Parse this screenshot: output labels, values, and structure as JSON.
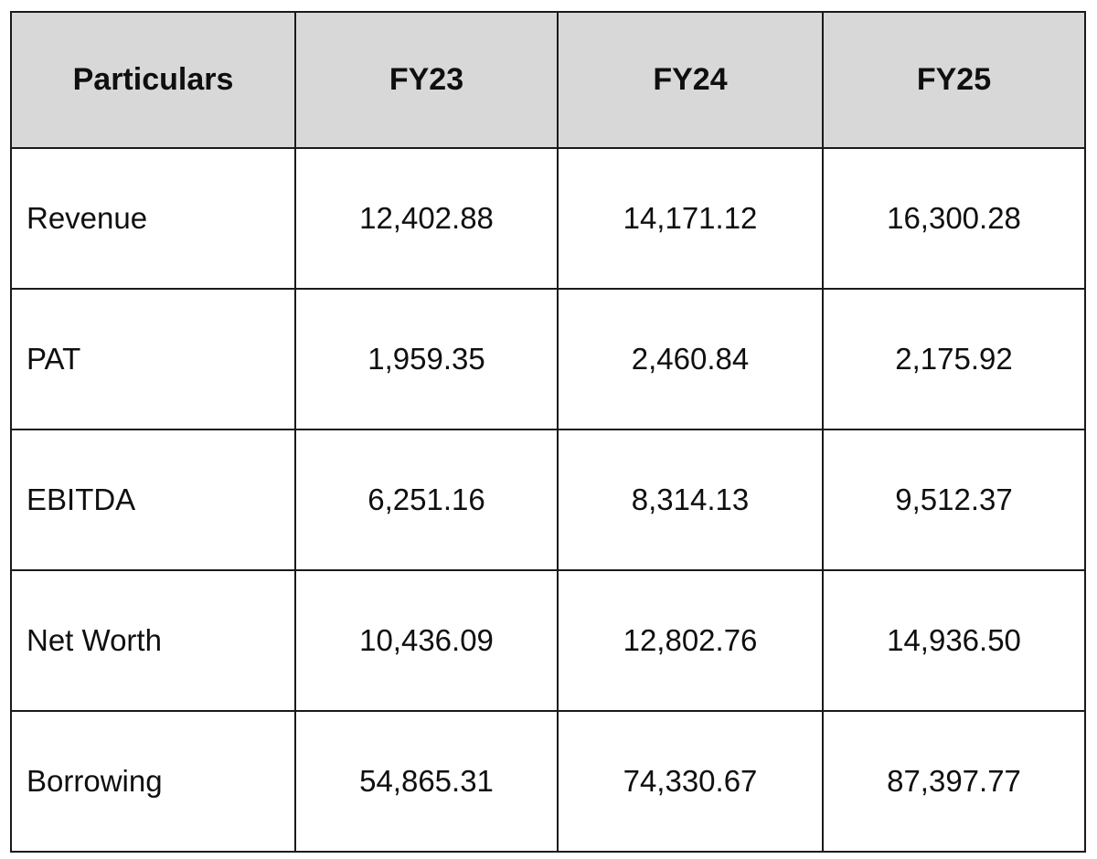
{
  "table": {
    "columns": [
      "Particulars",
      "FY23",
      "FY24",
      "FY25"
    ],
    "rows": [
      {
        "label": "Revenue",
        "values": [
          "12,402.88",
          "14,171.12",
          "16,300.28"
        ]
      },
      {
        "label": "PAT",
        "values": [
          "1,959.35",
          "2,460.84",
          "2,175.92"
        ]
      },
      {
        "label": "EBITDA",
        "values": [
          "6,251.16",
          "8,314.13",
          "9,512.37"
        ]
      },
      {
        "label": "Net Worth",
        "values": [
          "10,436.09",
          "12,802.76",
          "14,936.50"
        ]
      },
      {
        "label": "Borrowing",
        "values": [
          "54,865.31",
          "74,330.67",
          "87,397.77"
        ]
      }
    ],
    "colors": {
      "header_bg": "#d8d8d8",
      "border": "#1a1a1a",
      "cell_bg": "#ffffff",
      "text": "#0f0f0f"
    }
  }
}
